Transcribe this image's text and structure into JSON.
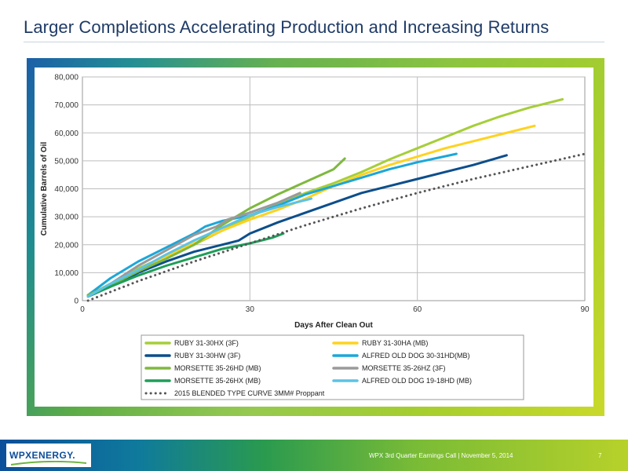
{
  "slide": {
    "title": "Larger Completions Accelerating Production and Increasing Returns",
    "footer_text": "WPX 3rd Quarter Earnings Call  |  November 5, 2014",
    "page_number": "7",
    "logo_text": "WPXENERGY."
  },
  "chart_data": {
    "type": "line",
    "xlabel": "Days After Clean Out",
    "ylabel": "Cumulative Barrels of Oil",
    "xlim": [
      0,
      90
    ],
    "ylim": [
      0,
      80000
    ],
    "x_ticks": [
      0,
      30,
      60,
      90
    ],
    "x_tick_labels": [
      "0",
      "30",
      "60",
      "90"
    ],
    "y_ticks": [
      0,
      10000,
      20000,
      30000,
      40000,
      50000,
      60000,
      70000,
      80000
    ],
    "y_tick_labels": [
      "0",
      "10,000",
      "20,000",
      "30,000",
      "40,000",
      "50,000",
      "60,000",
      "70,000",
      "80,000"
    ],
    "grid": true,
    "legend": "bottom",
    "series": [
      {
        "name": "RUBY 31-30HX (3F)",
        "color": "#a6ce39",
        "dash": "solid",
        "points": [
          [
            1,
            2000
          ],
          [
            5,
            6000
          ],
          [
            10,
            11500
          ],
          [
            15,
            16000
          ],
          [
            20,
            20000
          ],
          [
            25,
            25000
          ],
          [
            30,
            30000
          ],
          [
            35,
            34500
          ],
          [
            40,
            38500
          ],
          [
            45,
            42000
          ],
          [
            50,
            46000
          ],
          [
            55,
            50500
          ],
          [
            60,
            54500
          ],
          [
            65,
            58500
          ],
          [
            70,
            62500
          ],
          [
            75,
            66000
          ],
          [
            80,
            69000
          ],
          [
            86,
            72000
          ]
        ]
      },
      {
        "name": "RUBY 31-30HA (MB)",
        "color": "#ffd21f",
        "dash": "solid",
        "points": [
          [
            1,
            2000
          ],
          [
            5,
            6000
          ],
          [
            10,
            11000
          ],
          [
            15,
            16000
          ],
          [
            20,
            20500
          ],
          [
            25,
            25000
          ],
          [
            30,
            29000
          ],
          [
            35,
            32500
          ],
          [
            40,
            36500
          ],
          [
            45,
            41000
          ],
          [
            50,
            45000
          ],
          [
            55,
            48500
          ],
          [
            60,
            51500
          ],
          [
            65,
            54500
          ],
          [
            70,
            57000
          ],
          [
            75,
            59500
          ],
          [
            81,
            62500
          ]
        ]
      },
      {
        "name": "RUBY 31-30HW (3F)",
        "color": "#0c4e8c",
        "dash": "solid",
        "points": [
          [
            1,
            1500
          ],
          [
            5,
            5000
          ],
          [
            10,
            10000
          ],
          [
            15,
            14000
          ],
          [
            20,
            17500
          ],
          [
            25,
            20000
          ],
          [
            28,
            21500
          ],
          [
            30,
            24000
          ],
          [
            35,
            28000
          ],
          [
            40,
            31500
          ],
          [
            45,
            35000
          ],
          [
            50,
            38500
          ],
          [
            55,
            41000
          ],
          [
            60,
            43500
          ],
          [
            65,
            46000
          ],
          [
            70,
            48500
          ],
          [
            76,
            52000
          ]
        ]
      },
      {
        "name": "ALFRED OLD DOG 30-31HD(MB)",
        "color": "#1ba7d9",
        "dash": "solid",
        "points": [
          [
            1,
            2000
          ],
          [
            5,
            8000
          ],
          [
            10,
            14000
          ],
          [
            15,
            19000
          ],
          [
            20,
            24000
          ],
          [
            22,
            26500
          ],
          [
            25,
            28500
          ],
          [
            30,
            30500
          ],
          [
            35,
            34000
          ],
          [
            40,
            38000
          ],
          [
            45,
            41000
          ],
          [
            50,
            44000
          ],
          [
            55,
            47000
          ],
          [
            60,
            49500
          ],
          [
            67,
            52500
          ]
        ]
      },
      {
        "name": "MORSETTE 35-26HD (MB)",
        "color": "#7fb83f",
        "dash": "solid",
        "points": [
          [
            1,
            2000
          ],
          [
            5,
            5500
          ],
          [
            10,
            10500
          ],
          [
            15,
            15000
          ],
          [
            20,
            20000
          ],
          [
            25,
            27000
          ],
          [
            30,
            33000
          ],
          [
            35,
            38000
          ],
          [
            40,
            42500
          ],
          [
            45,
            47000
          ],
          [
            47,
            50800
          ]
        ]
      },
      {
        "name": "MORSETTE 35-26HZ (3F)",
        "color": "#9a9a9a",
        "dash": "solid",
        "points": [
          [
            1,
            1500
          ],
          [
            5,
            6000
          ],
          [
            10,
            12500
          ],
          [
            15,
            18000
          ],
          [
            20,
            23500
          ],
          [
            24,
            26500
          ],
          [
            26,
            29000
          ],
          [
            30,
            31500
          ],
          [
            35,
            35000
          ],
          [
            39,
            38500
          ]
        ]
      },
      {
        "name": "MORSETTE 35-26HX (MB)",
        "color": "#1f9e58",
        "dash": "solid",
        "points": [
          [
            1,
            1500
          ],
          [
            5,
            5000
          ],
          [
            10,
            9000
          ],
          [
            15,
            12500
          ],
          [
            20,
            15500
          ],
          [
            25,
            18500
          ],
          [
            30,
            20500
          ],
          [
            34,
            22500
          ],
          [
            36,
            24000
          ]
        ]
      },
      {
        "name": "ALFRED OLD DOG 19-18HD (MB)",
        "color": "#5cc3e6",
        "dash": "solid",
        "points": [
          [
            1,
            1500
          ],
          [
            5,
            6000
          ],
          [
            10,
            11000
          ],
          [
            15,
            16500
          ],
          [
            20,
            21500
          ],
          [
            25,
            26000
          ],
          [
            30,
            30500
          ],
          [
            35,
            33500
          ],
          [
            41,
            36500
          ]
        ]
      },
      {
        "name": "2015 BLENDED TYPE CURVE 3MM# Proppant",
        "color": "#555555",
        "dash": "dotted",
        "points": [
          [
            1,
            0
          ],
          [
            10,
            7000
          ],
          [
            20,
            14000
          ],
          [
            30,
            20500
          ],
          [
            40,
            27000
          ],
          [
            50,
            33000
          ],
          [
            60,
            38500
          ],
          [
            70,
            43500
          ],
          [
            80,
            48000
          ],
          [
            90,
            52500
          ]
        ]
      }
    ]
  }
}
